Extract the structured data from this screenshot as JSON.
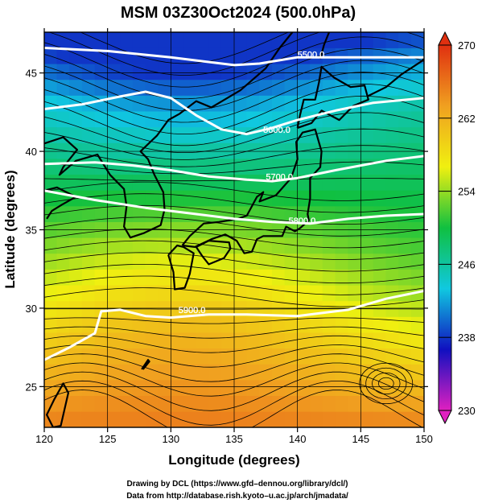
{
  "chart_data": {
    "type": "heatmap",
    "title": "MSM 03Z30Oct2024 (500.0hPa)",
    "xlabel": "Longitude (degrees)",
    "ylabel": "Latitude  (degrees)",
    "xlim": [
      120,
      150
    ],
    "ylim": [
      22.4,
      47.6
    ],
    "xticks": [
      "120",
      "125",
      "130",
      "135",
      "140",
      "145",
      "150"
    ],
    "xtick_values": [
      120,
      125,
      130,
      135,
      140,
      145,
      150
    ],
    "yticks": [
      "25",
      "30",
      "35",
      "40",
      "45"
    ],
    "ytick_values": [
      25,
      30,
      35,
      40,
      45
    ],
    "grid": true,
    "colorbar": {
      "range": [
        230,
        270
      ],
      "tick_values": [
        230,
        238,
        246,
        254,
        262,
        270
      ],
      "tick_labels": [
        "230",
        "238",
        "246",
        "254",
        "262",
        "270"
      ],
      "colors": [
        "#e020c0",
        "#1010c0",
        "#10c8e0",
        "#10c040",
        "#f0f010",
        "#f0a020",
        "#e03010"
      ]
    },
    "contours": [
      {
        "label": "5500.0",
        "points": [
          [
            120,
            46.6
          ],
          [
            125,
            46.4
          ],
          [
            130,
            46.0
          ],
          [
            135,
            45.5
          ],
          [
            137,
            45.6
          ],
          [
            140,
            46.0
          ],
          [
            145,
            46.0
          ],
          [
            150,
            46.0
          ]
        ],
        "label_at": [
          140,
          46.2
        ]
      },
      {
        "label": "5600.0",
        "points": [
          [
            120,
            42.7
          ],
          [
            123,
            43.0
          ],
          [
            126,
            43.5
          ],
          [
            128,
            43.8
          ],
          [
            130,
            43.4
          ],
          [
            132,
            42.3
          ],
          [
            134,
            41.4
          ],
          [
            136,
            41.1
          ],
          [
            138,
            41.5
          ],
          [
            140,
            42.0
          ],
          [
            143,
            42.6
          ],
          [
            146,
            43.1
          ],
          [
            150,
            43.4
          ]
        ],
        "label_at": [
          137.3,
          41.4
        ]
      },
      {
        "label": "5700.0",
        "points": [
          [
            120,
            39.2
          ],
          [
            124,
            39.3
          ],
          [
            127,
            39.1
          ],
          [
            130,
            38.8
          ],
          [
            133,
            38.4
          ],
          [
            136,
            38.2
          ],
          [
            138,
            38.1
          ],
          [
            140,
            38.3
          ],
          [
            143,
            38.8
          ],
          [
            147,
            39.4
          ],
          [
            150,
            39.7
          ]
        ],
        "label_at": [
          137.5,
          38.4
        ]
      },
      {
        "label": "5800.0",
        "points": [
          [
            120,
            37.5
          ],
          [
            124,
            36.9
          ],
          [
            128,
            36.4
          ],
          [
            132,
            36.0
          ],
          [
            135,
            35.7
          ],
          [
            138,
            35.5
          ],
          [
            141,
            35.4
          ],
          [
            144,
            35.7
          ],
          [
            147,
            35.9
          ],
          [
            150,
            36.0
          ]
        ],
        "label_at": [
          139.3,
          35.6
        ]
      },
      {
        "label": "5900.0",
        "points": [
          [
            120,
            26.7
          ],
          [
            122,
            27.5
          ],
          [
            124,
            28.4
          ],
          [
            124.5,
            29.8
          ],
          [
            126,
            29.9
          ],
          [
            128,
            29.5
          ],
          [
            130,
            29.4
          ],
          [
            133,
            29.6
          ],
          [
            136,
            29.6
          ],
          [
            140,
            29.5
          ],
          [
            144,
            29.9
          ],
          [
            147,
            30.6
          ],
          [
            150,
            31.1
          ]
        ],
        "label_at": [
          130.6,
          29.9
        ]
      }
    ]
  }
}
